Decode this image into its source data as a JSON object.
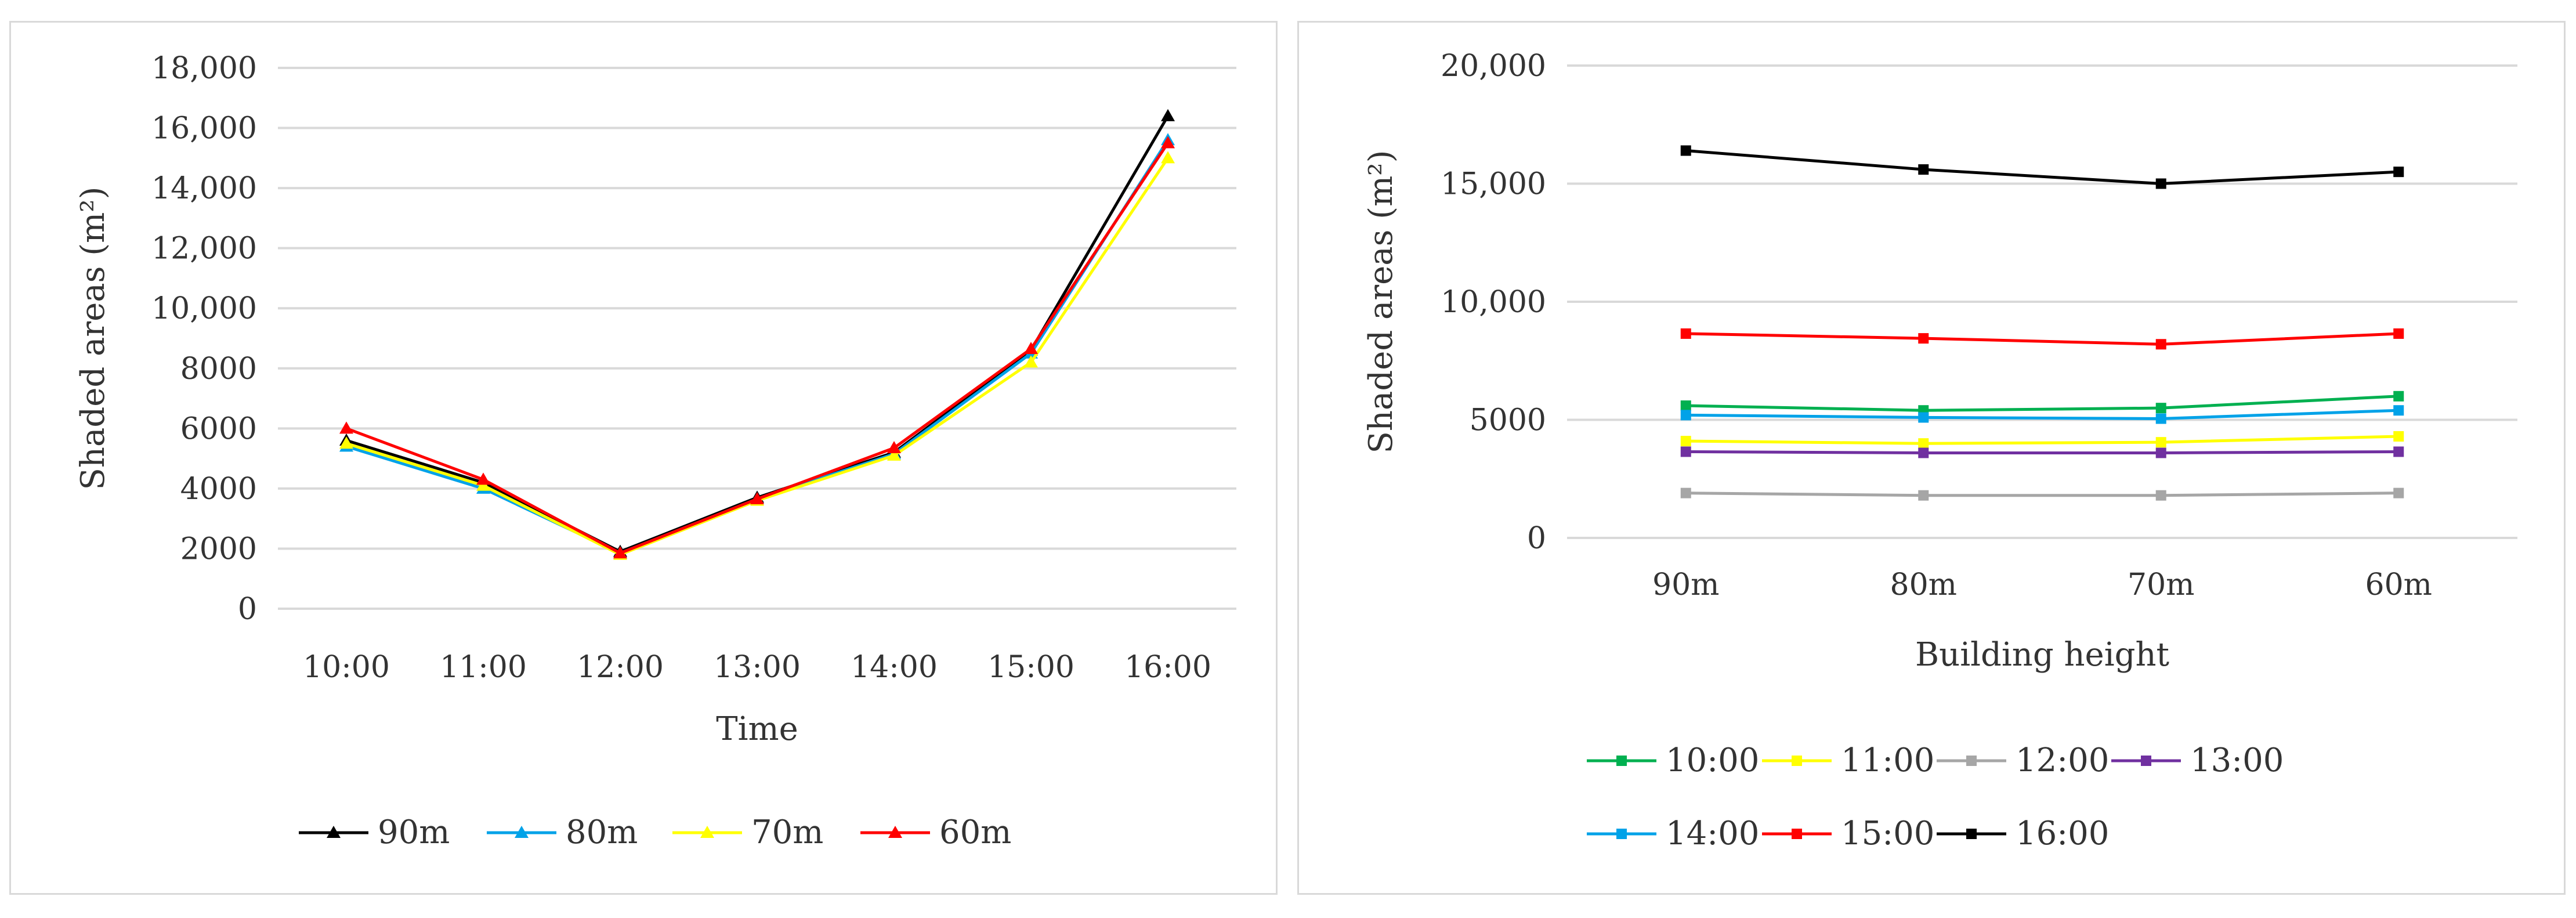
{
  "chart_data": [
    {
      "type": "line",
      "title": "",
      "xlabel": "Time",
      "ylabel": "Shaded areas  (m²)",
      "categories": [
        "10:00",
        "11:00",
        "12:00",
        "13:00",
        "14:00",
        "15:00",
        "16:00"
      ],
      "ylim": [
        0,
        18000
      ],
      "yticks": [
        0,
        2000,
        4000,
        6000,
        8000,
        10000,
        12000,
        14000,
        16000,
        18000
      ],
      "ytick_labels": [
        "0",
        "2000",
        "4000",
        "6000",
        "8000",
        "10,000",
        "12,000",
        "14,000",
        "16,000",
        "18,000"
      ],
      "grid": true,
      "legend_position": "bottom",
      "marker": "triangle",
      "series": [
        {
          "name": "90m",
          "color": "#000000",
          "values": [
            5600,
            4200,
            1900,
            3700,
            5200,
            8600,
            16400
          ]
        },
        {
          "name": "80m",
          "color": "#00a2e8",
          "values": [
            5400,
            4000,
            1850,
            3650,
            5150,
            8500,
            15600
          ]
        },
        {
          "name": "70m",
          "color": "#ffff00",
          "values": [
            5500,
            4100,
            1800,
            3600,
            5100,
            8200,
            15000
          ]
        },
        {
          "name": "60m",
          "color": "#ff0000",
          "values": [
            6000,
            4300,
            1850,
            3650,
            5350,
            8650,
            15500
          ]
        }
      ]
    },
    {
      "type": "line",
      "title": "",
      "xlabel": "Building height",
      "ylabel": "Shaded areas  (m²)",
      "categories": [
        "90m",
        "80m",
        "70m",
        "60m"
      ],
      "ylim": [
        0,
        20000
      ],
      "yticks": [
        0,
        5000,
        10000,
        15000,
        20000
      ],
      "ytick_labels": [
        "0",
        "5000",
        "10,000",
        "15,000",
        "20,000"
      ],
      "grid": true,
      "legend_position": "bottom",
      "marker": "square",
      "series": [
        {
          "name": "10:00",
          "color": "#00b050",
          "values": [
            5600,
            5400,
            5500,
            6000
          ]
        },
        {
          "name": "11:00",
          "color": "#ffff00",
          "values": [
            4100,
            4000,
            4050,
            4300
          ]
        },
        {
          "name": "12:00",
          "color": "#a6a6a6",
          "values": [
            1900,
            1800,
            1800,
            1900
          ]
        },
        {
          "name": "13:00",
          "color": "#7030a0",
          "values": [
            3650,
            3600,
            3600,
            3650
          ]
        },
        {
          "name": "14:00",
          "color": "#00a2e8",
          "values": [
            5200,
            5100,
            5050,
            5400
          ]
        },
        {
          "name": "15:00",
          "color": "#ff0000",
          "values": [
            8650,
            8450,
            8200,
            8650
          ]
        },
        {
          "name": "16:00",
          "color": "#000000",
          "values": [
            16400,
            15600,
            15000,
            15500
          ]
        }
      ]
    }
  ]
}
